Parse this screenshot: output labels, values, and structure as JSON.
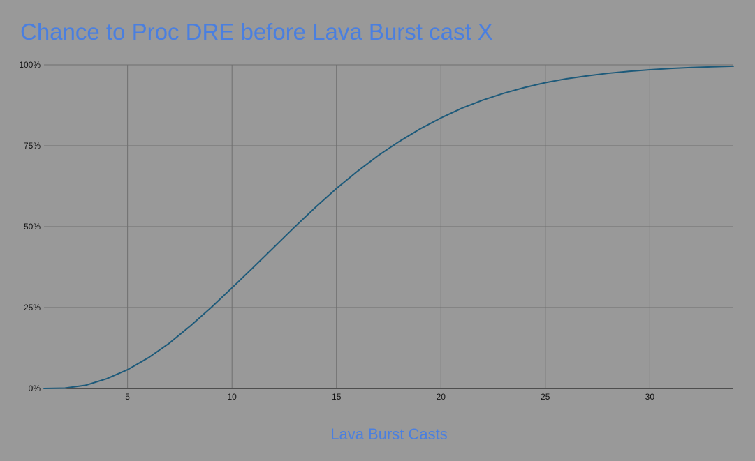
{
  "colors": {
    "background": "#999999",
    "title": "#4a7fe0",
    "series": "#1d5a7a"
  },
  "chart_data": {
    "type": "line",
    "title": "Chance to Proc DRE before Lava Burst cast X",
    "xlabel": "Lava Burst Casts",
    "ylabel": "",
    "xlim": [
      1,
      34
    ],
    "ylim": [
      0,
      1
    ],
    "x_ticks": [
      5,
      10,
      15,
      20,
      25,
      30
    ],
    "y_ticks": [
      {
        "value": 0,
        "label": "0%"
      },
      {
        "value": 0.25,
        "label": "25%"
      },
      {
        "value": 0.5,
        "label": "50%"
      },
      {
        "value": 0.75,
        "label": "75%"
      },
      {
        "value": 1,
        "label": "100%"
      }
    ],
    "grid": true,
    "legend": "none",
    "series": [
      {
        "x": [
          1,
          2,
          3,
          4,
          5,
          6,
          7,
          8,
          9,
          10,
          11,
          12,
          13,
          14,
          15,
          16,
          17,
          18,
          19,
          20,
          21,
          22,
          23,
          24,
          25,
          26,
          27,
          28,
          29,
          30,
          31,
          32,
          33,
          34
        ],
        "values": [
          0,
          0.001,
          0.01,
          0.03,
          0.058,
          0.095,
          0.14,
          0.193,
          0.25,
          0.311,
          0.373,
          0.436,
          0.499,
          0.56,
          0.618,
          0.671,
          0.72,
          0.763,
          0.802,
          0.836,
          0.866,
          0.891,
          0.912,
          0.93,
          0.945,
          0.957,
          0.966,
          0.974,
          0.98,
          0.985,
          0.989,
          0.992,
          0.994,
          0.996
        ]
      }
    ]
  }
}
